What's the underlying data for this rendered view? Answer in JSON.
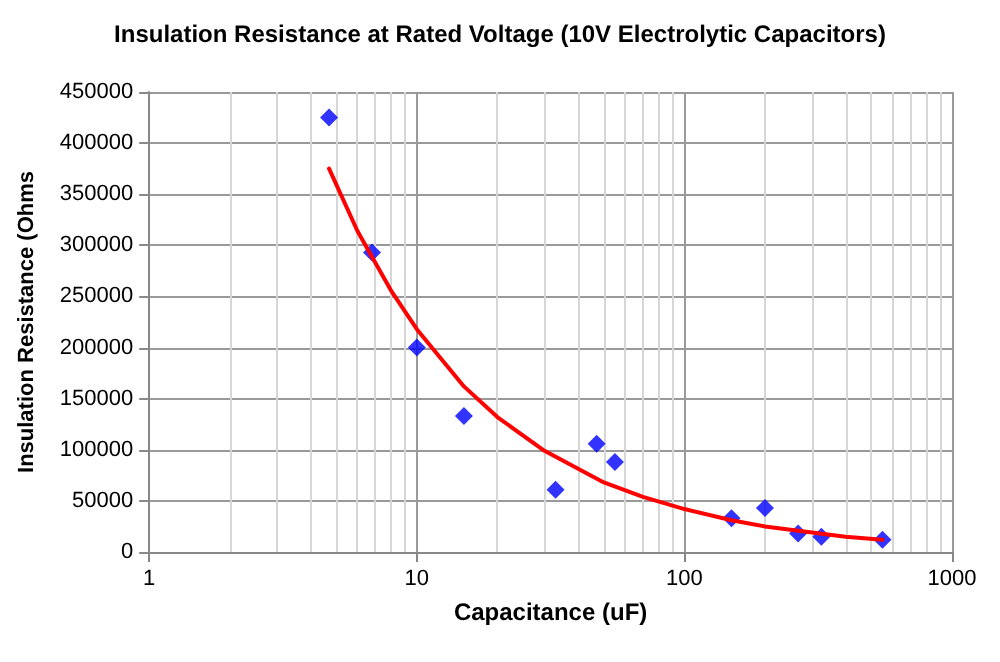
{
  "chart_data": {
    "type": "scatter",
    "title": "Insulation Resistance at Rated Voltage (10V Electrolytic Capacitors)",
    "xlabel": "Capacitance (uF)",
    "ylabel": "Insulation Resistance (Ohms",
    "log": "x",
    "xlim": [
      1,
      1000
    ],
    "xticks": [
      1,
      10,
      100,
      1000
    ],
    "ylim": [
      0,
      450000
    ],
    "yticks": [
      0,
      50000,
      100000,
      150000,
      200000,
      250000,
      300000,
      350000,
      400000,
      450000
    ],
    "grid": true,
    "series": [
      {
        "marker": "diamond",
        "color": "#0000ff",
        "x": [
          4.7,
          6.8,
          10,
          15,
          33,
          47,
          55,
          150,
          200,
          266,
          325,
          550
        ],
        "values": [
          425000,
          293000,
          200000,
          133000,
          61000,
          106000,
          88000,
          33000,
          43000,
          18000,
          15000,
          12000
        ]
      },
      {
        "type": "line",
        "marker": "none",
        "line_style": "solid",
        "color": "#ff0000",
        "x": [
          4.7,
          6,
          8,
          10,
          15,
          20,
          30,
          50,
          70,
          100,
          150,
          200,
          300,
          400,
          550
        ],
        "values": [
          375000,
          314000,
          256000,
          218000,
          162000,
          132000,
          99000,
          68000,
          54000,
          42000,
          31000,
          25000,
          19000,
          15000,
          12000
        ]
      }
    ]
  }
}
